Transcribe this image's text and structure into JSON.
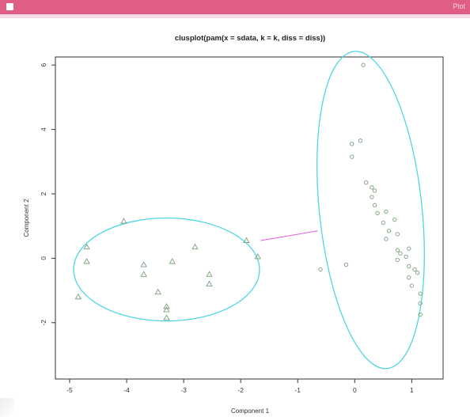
{
  "window": {
    "title_label": "Plot"
  },
  "chart_data": {
    "type": "scatter",
    "title": "clusplot(pam(x = sdata, k = k, diss = diss))",
    "xlabel": "Component 1",
    "ylabel": "Component 2",
    "xlim": [
      -5.25,
      1.55
    ],
    "ylim": [
      -3.75,
      6.25
    ],
    "xticks": [
      -5,
      -4,
      -3,
      -2,
      -1,
      0,
      1
    ],
    "yticks": [
      -2,
      0,
      2,
      4,
      6
    ],
    "grid": false,
    "legend": "none",
    "colors": {
      "ellipse": "#4fd6e6",
      "points": "#7aa07a",
      "connector": "#e65cd2",
      "axis": "#333333"
    },
    "series": [
      {
        "marker": "triangle",
        "points": [
          [
            -4.05,
            1.15
          ],
          [
            -4.7,
            0.35
          ],
          [
            -4.7,
            -0.1
          ],
          [
            -4.85,
            -1.2
          ],
          [
            -3.7,
            -0.2
          ],
          [
            -3.7,
            -0.5
          ],
          [
            -3.2,
            -0.1
          ],
          [
            -3.45,
            -1.05
          ],
          [
            -3.3,
            -1.5
          ],
          [
            -3.3,
            -1.6
          ],
          [
            -3.3,
            -1.85
          ],
          [
            -2.8,
            0.35
          ],
          [
            -2.55,
            -0.5
          ],
          [
            -2.55,
            -0.8
          ],
          [
            -1.9,
            0.55
          ],
          [
            -1.7,
            0.05
          ]
        ]
      },
      {
        "marker": "circle",
        "points": [
          [
            0.15,
            6.0
          ],
          [
            0.1,
            3.65
          ],
          [
            -0.05,
            3.55
          ],
          [
            -0.05,
            3.15
          ],
          [
            0.2,
            2.35
          ],
          [
            0.3,
            2.2
          ],
          [
            0.35,
            2.1
          ],
          [
            0.3,
            1.9
          ],
          [
            0.35,
            1.65
          ],
          [
            0.4,
            1.4
          ],
          [
            0.55,
            1.45
          ],
          [
            0.5,
            1.1
          ],
          [
            0.7,
            1.2
          ],
          [
            0.6,
            0.85
          ],
          [
            0.55,
            0.6
          ],
          [
            0.75,
            0.75
          ],
          [
            0.75,
            0.25
          ],
          [
            0.8,
            0.15
          ],
          [
            0.75,
            -0.05
          ],
          [
            0.95,
            0.3
          ],
          [
            0.9,
            0.05
          ],
          [
            0.95,
            -0.25
          ],
          [
            1.05,
            -0.35
          ],
          [
            1.1,
            -0.45
          ],
          [
            0.95,
            -0.6
          ],
          [
            1.0,
            -0.85
          ],
          [
            1.15,
            -1.1
          ],
          [
            1.15,
            -1.4
          ],
          [
            1.15,
            -1.75
          ],
          [
            -0.15,
            -0.2
          ],
          [
            -0.6,
            -0.35
          ]
        ]
      }
    ],
    "clusters": [
      {
        "center": [
          -3.3,
          -0.35
        ],
        "rx": 1.63,
        "ry": 1.6,
        "rotation_deg": 0
      },
      {
        "center": [
          0.28,
          1.5
        ],
        "rx": 0.9,
        "ry": 4.95,
        "rotation_deg": 6
      }
    ],
    "connector": {
      "from": [
        -1.65,
        0.55
      ],
      "to": [
        -0.65,
        0.85
      ]
    }
  }
}
